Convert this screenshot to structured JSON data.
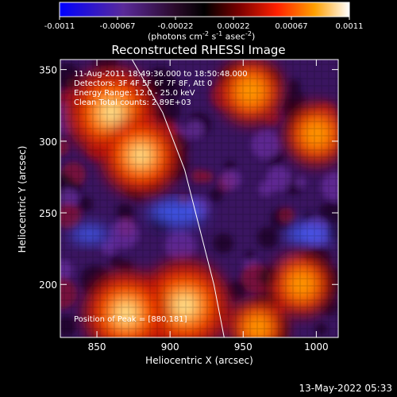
{
  "colorbar": {
    "ticks": [
      "-0.0011",
      "-0.00067",
      "-0.00022",
      "0.00022",
      "0.00067",
      "0.0011"
    ],
    "units_prefix": "(photons cm",
    "units_exp1": "-2",
    "units_mid1": " s",
    "units_exp2": "-1",
    "units_mid2": " asec",
    "units_exp3": "-2",
    "units_suffix": ")",
    "colors": [
      "#0000ff",
      "#5a2a9a",
      "#2a0a2a",
      "#000000",
      "#7a0000",
      "#ff2000",
      "#ffa000",
      "#ffffff"
    ]
  },
  "chart_data": {
    "type": "heatmap",
    "title": "Reconstructed RHESSI Image",
    "xlabel": "Heliocentric X (arcsec)",
    "ylabel": "Heliocentric Y (arcsec)",
    "xlim": [
      825,
      1015
    ],
    "ylim": [
      163,
      357
    ],
    "x_ticks": [
      850,
      900,
      950,
      1000
    ],
    "y_ticks": [
      200,
      250,
      300,
      350
    ],
    "value_range": [
      -0.0011,
      0.0011
    ],
    "hot_regions": [
      {
        "x": 860,
        "y": 320,
        "level": 1.0
      },
      {
        "x": 880,
        "y": 290,
        "level": 0.8
      },
      {
        "x": 910,
        "y": 185,
        "level": 1.0
      },
      {
        "x": 870,
        "y": 180,
        "level": 0.9
      },
      {
        "x": 955,
        "y": 335,
        "level": 0.55
      },
      {
        "x": 1000,
        "y": 305,
        "level": 0.5
      },
      {
        "x": 990,
        "y": 200,
        "level": 0.5
      },
      {
        "x": 960,
        "y": 170,
        "level": 0.4
      }
    ],
    "cold_regions": [
      {
        "x": 905,
        "y": 250,
        "level": 0.6
      },
      {
        "x": 995,
        "y": 235,
        "level": 0.5
      },
      {
        "x": 845,
        "y": 235,
        "level": 0.4
      }
    ],
    "limb_curve": [
      [
        874,
        357
      ],
      [
        895,
        320
      ],
      [
        910,
        280
      ],
      [
        920,
        240
      ],
      [
        930,
        200
      ],
      [
        937,
        163
      ]
    ],
    "annotations": [
      "11-Aug-2011 18:49:36.000 to 18:50:48.000",
      "Detectors: 3F 4F 5F 6F 7F 8F, Att 0",
      "Energy Range: 12.0 - 25.0 keV",
      "Clean      Total counts: 2.89E+03"
    ],
    "peak_label": "Position of Peak = [880,181]"
  },
  "footer": {
    "date": "13-May-2022 05:33"
  }
}
